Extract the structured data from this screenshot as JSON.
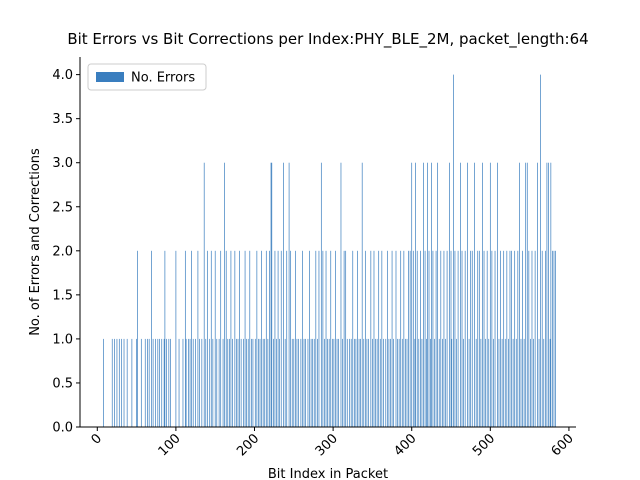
{
  "chart_data": {
    "type": "bar",
    "title": "Bit Errors vs Bit Corrections per Index:PHY_BLE_2M, packet_length:64",
    "xlabel": "Bit Index in Packet",
    "ylabel": "No. of Errors and Corrections",
    "legend": "upper left",
    "series": [
      {
        "name": "No. Errors",
        "color": "#3a7ebf",
        "x": [
          8,
          19,
          22,
          25,
          28,
          31,
          34,
          38,
          44,
          50,
          51,
          56,
          61,
          64,
          66,
          69,
          71,
          74,
          77,
          79,
          82,
          85,
          86,
          88,
          91,
          93,
          100,
          104,
          109,
          112,
          113,
          116,
          118,
          120,
          122,
          125,
          128,
          130,
          133,
          136,
          138,
          140,
          143,
          145,
          147,
          150,
          152,
          155,
          157,
          160,
          162,
          164,
          166,
          168,
          170,
          172,
          175,
          177,
          179,
          181,
          183,
          186,
          188,
          190,
          192,
          194,
          196,
          198,
          201,
          203,
          205,
          207,
          209,
          211,
          213,
          215,
          217,
          219,
          221,
          222,
          224,
          226,
          228,
          230,
          232,
          234,
          237,
          239,
          241,
          244,
          246,
          248,
          250,
          252,
          254,
          256,
          259,
          261,
          263,
          265,
          268,
          270,
          272,
          274,
          276,
          278,
          280,
          282,
          285,
          287,
          289,
          291,
          293,
          295,
          297,
          299,
          301,
          303,
          305,
          307,
          310,
          312,
          314,
          316,
          318,
          321,
          323,
          325,
          327,
          329,
          331,
          333,
          335,
          337,
          339,
          341,
          343,
          345,
          348,
          350,
          352,
          354,
          356,
          358,
          360,
          362,
          364,
          367,
          369,
          371,
          373,
          375,
          377,
          380,
          382,
          384,
          386,
          388,
          390,
          392,
          394,
          396,
          398,
          400,
          402,
          404,
          405,
          407,
          409,
          411,
          413,
          415,
          417,
          419,
          420,
          422,
          424,
          425,
          427,
          429,
          431,
          433,
          435,
          437,
          439,
          441,
          443,
          445,
          448,
          450,
          451,
          453,
          455,
          457,
          459,
          462,
          464,
          466,
          468,
          471,
          473,
          475,
          477,
          480,
          482,
          484,
          486,
          488,
          490,
          492,
          494,
          496,
          498,
          500,
          502,
          504,
          506,
          509,
          511,
          513,
          515,
          517,
          519,
          521,
          523,
          525,
          527,
          529,
          531,
          533,
          535,
          537,
          539,
          541,
          543,
          545,
          547,
          549,
          551,
          553,
          555,
          557,
          560,
          562,
          564,
          566,
          568,
          570,
          572,
          574,
          576,
          577,
          579,
          581,
          583
        ],
        "values": [
          1,
          1,
          1,
          1,
          1,
          1,
          1,
          1,
          1,
          1,
          2,
          1,
          1,
          1,
          1,
          2,
          1,
          1,
          1,
          1,
          1,
          1,
          2,
          1,
          1,
          1,
          2,
          1,
          1,
          2,
          1,
          1,
          1,
          2,
          1,
          1,
          2,
          1,
          1,
          3,
          1,
          2,
          1,
          2,
          1,
          2,
          1,
          1,
          2,
          1,
          3,
          2,
          1,
          1,
          2,
          1,
          2,
          1,
          1,
          2,
          1,
          1,
          2,
          1,
          1,
          2,
          1,
          1,
          1,
          2,
          1,
          1,
          2,
          1,
          1,
          2,
          1,
          2,
          3,
          3,
          1,
          2,
          1,
          2,
          1,
          2,
          3,
          1,
          2,
          3,
          2,
          1,
          1,
          2,
          1,
          1,
          1,
          2,
          1,
          1,
          1,
          2,
          1,
          1,
          1,
          2,
          1,
          2,
          3,
          2,
          1,
          2,
          1,
          1,
          2,
          1,
          1,
          2,
          1,
          1,
          3,
          1,
          2,
          2,
          1,
          1,
          1,
          2,
          1,
          1,
          2,
          1,
          1,
          3,
          1,
          2,
          1,
          1,
          2,
          1,
          2,
          1,
          1,
          2,
          1,
          2,
          1,
          1,
          2,
          1,
          1,
          2,
          1,
          2,
          1,
          1,
          2,
          1,
          2,
          1,
          1,
          2,
          2,
          3,
          2,
          1,
          3,
          2,
          1,
          2,
          1,
          3,
          2,
          1,
          3,
          2,
          1,
          3,
          2,
          1,
          2,
          3,
          1,
          2,
          1,
          2,
          1,
          2,
          3,
          2,
          1,
          4,
          2,
          1,
          2,
          3,
          2,
          1,
          2,
          3,
          1,
          2,
          2,
          3,
          1,
          2,
          2,
          1,
          3,
          2,
          1,
          2,
          1,
          3,
          2,
          1,
          2,
          3,
          1,
          2,
          1,
          2,
          1,
          2,
          1,
          2,
          2,
          1,
          2,
          1,
          2,
          3,
          1,
          2,
          1,
          3,
          3,
          2,
          1,
          2,
          1,
          2,
          3,
          1,
          4,
          2,
          1,
          2,
          3,
          3,
          1,
          3,
          2,
          2,
          2
        ]
      }
    ],
    "xlim": [
      -22,
      609
    ],
    "ylim": [
      0,
      4.2
    ],
    "xticks": [
      0,
      100,
      200,
      300,
      400,
      500,
      600
    ],
    "yticks": [
      {
        "value": 0,
        "label": "0.0"
      },
      0.5,
      {
        "value": 1,
        "label": "1.0"
      },
      1.5,
      {
        "value": 2,
        "label": "2.0"
      },
      2.5,
      {
        "value": 3,
        "label": "3.0"
      },
      3.5,
      {
        "value": 4,
        "label": "4.0"
      }
    ]
  }
}
